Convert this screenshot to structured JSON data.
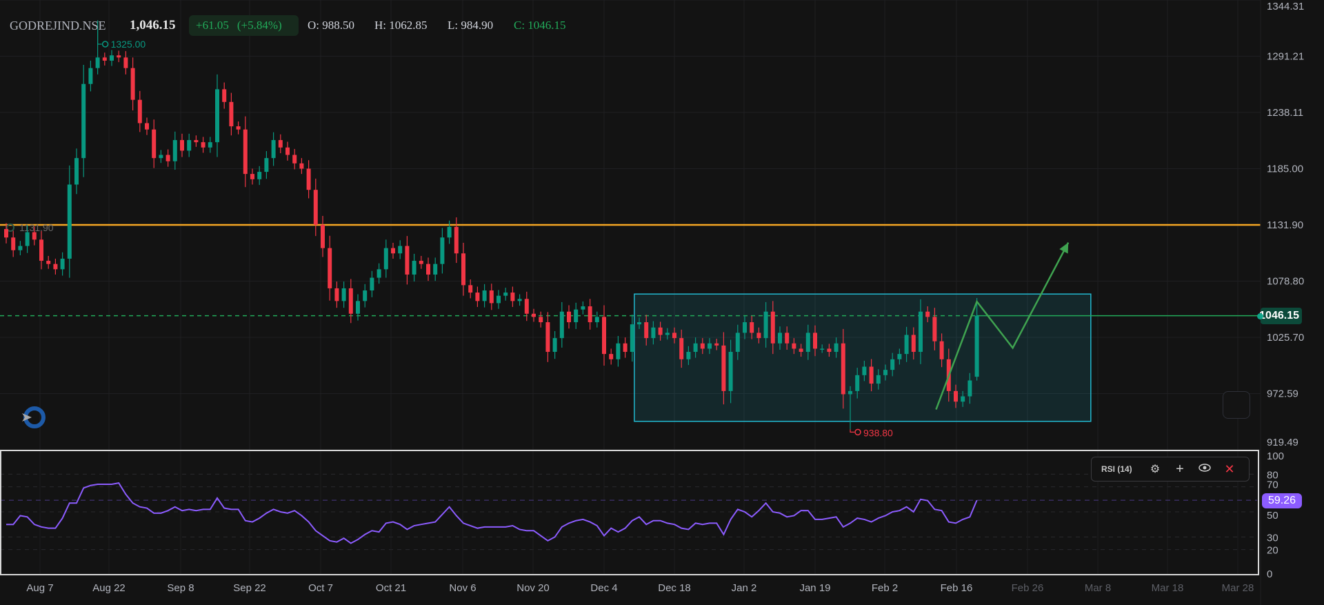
{
  "header": {
    "symbol": "GODREJIND.NSE",
    "last_price": "1,046.15",
    "change": "+61.05",
    "change_pct": "(+5.84%)",
    "open": "O: 988.50",
    "high": "H: 1062.85",
    "low": "L: 984.90",
    "close": "C: 1046.15"
  },
  "colors": {
    "background": "#131313",
    "up": "#089981",
    "down": "#f23645",
    "resistance_line": "#f5a623",
    "range_box": "#22b8cf",
    "projection": "#3fa350",
    "rsi_line": "#8c5cff",
    "last_price_tag": "#0c4a3a"
  },
  "price_axis": {
    "labels": [
      "1344.31",
      "1291.21",
      "1238.11",
      "1185.00",
      "1131.90",
      "1078.80",
      "1025.70",
      "972.59",
      "919.49"
    ],
    "last_price_label": "1046.15"
  },
  "rsi": {
    "legend": "RSI (14)",
    "icons": [
      "gear-icon",
      "plus-icon",
      "eye-icon",
      "close-icon"
    ],
    "axis_labels": [
      "100",
      "80",
      "70",
      "50",
      "30",
      "20",
      "0"
    ],
    "value_label": "59.26"
  },
  "date_axis": {
    "labels": [
      "Aug 7",
      "Aug 22",
      "Sep 8",
      "Sep 22",
      "Oct 7",
      "Oct 21",
      "Nov 6",
      "Nov 20",
      "Dec 4",
      "Dec 18",
      "Jan 2",
      "Jan 19",
      "Feb 2",
      "Feb 16",
      "Feb 26",
      "Mar 8",
      "Mar 18",
      "Mar 28"
    ],
    "future_from": 14
  },
  "chart_data": {
    "type": "candlestick",
    "ylim": [
      919.49,
      1344.31
    ],
    "closes": [
      1120,
      1108,
      1112,
      1125,
      1118,
      1098,
      1095,
      1090,
      1100,
      1170,
      1195,
      1265,
      1280,
      1290,
      1287,
      1292,
      1290,
      1280,
      1250,
      1228,
      1222,
      1195,
      1198,
      1192,
      1212,
      1202,
      1212,
      1210,
      1205,
      1210,
      1260,
      1248,
      1225,
      1222,
      1180,
      1175,
      1182,
      1195,
      1212,
      1205,
      1198,
      1190,
      1185,
      1165,
      1132,
      1110,
      1072,
      1060,
      1072,
      1048,
      1060,
      1070,
      1082,
      1090,
      1110,
      1105,
      1112,
      1085,
      1098,
      1095,
      1085,
      1095,
      1120,
      1130,
      1105,
      1075,
      1068,
      1060,
      1070,
      1058,
      1065,
      1068,
      1060,
      1062,
      1048,
      1045,
      1040,
      1012,
      1025,
      1050,
      1040,
      1052,
      1055,
      1040,
      1045,
      1010,
      1005,
      1020,
      1012,
      1038,
      1040,
      1025,
      1035,
      1028,
      1030,
      1025,
      1005,
      1012,
      1020,
      1015,
      1020,
      1018,
      975,
      1012,
      1030,
      1040,
      1030,
      1025,
      1050,
      1020,
      1030,
      1020,
      1015,
      1012,
      1030,
      1015,
      1015,
      1012,
      1020,
      972,
      975,
      990,
      998,
      982,
      990,
      995,
      1005,
      1010,
      1028,
      1012,
      1050,
      1045,
      1022,
      1005,
      975,
      965,
      970,
      985,
      1046.15
    ],
    "last_bar": {
      "open": 988.5,
      "high": 1062.85,
      "low": 984.9,
      "close": 1046.15
    },
    "marked_high": {
      "bar": 13,
      "value": 1325.0,
      "label": "1325.00"
    },
    "marked_low": {
      "bar": 120,
      "value": 938.8,
      "label": "938.80"
    },
    "horizontal_line": {
      "value": 1131.9,
      "label": "1131.90"
    },
    "last_price_line": 1046.15,
    "range_box": {
      "from_bar": 89.3,
      "to_bar": 154.2,
      "top": 1066.6,
      "bottom": 946.4
    },
    "projection_path": [
      {
        "bar": 132.2,
        "price": 957.6
      },
      {
        "bar": 138,
        "price": 1059.5
      },
      {
        "bar": 143.1,
        "price": 1015.7
      },
      {
        "bar": 151,
        "price": 1115.2
      }
    ],
    "rsi_values": [
      40,
      40,
      47,
      46,
      40,
      38,
      37,
      37,
      45,
      57,
      57,
      69,
      71,
      72,
      72,
      72,
      73,
      64,
      57,
      54,
      53,
      49,
      49,
      51,
      54,
      51,
      52,
      51,
      52,
      52,
      61,
      53,
      52,
      52,
      43,
      42,
      45,
      49,
      52,
      50,
      49,
      51,
      47,
      42,
      35,
      31,
      27,
      26,
      29,
      25,
      28,
      32,
      35,
      34,
      41,
      42,
      40,
      36,
      39,
      40,
      41,
      42,
      48,
      54,
      47,
      41,
      39,
      37,
      38,
      38,
      38,
      38,
      39,
      36,
      35,
      35,
      31,
      27,
      30,
      38,
      41,
      43,
      44,
      42,
      39,
      31,
      37,
      34,
      37,
      43,
      46,
      40,
      43,
      43,
      41,
      40,
      37,
      36,
      41,
      40,
      41,
      41,
      32,
      44,
      52,
      50,
      46,
      51,
      57,
      50,
      49,
      46,
      47,
      51,
      51,
      44,
      44,
      45,
      46,
      38,
      41,
      45,
      44,
      42,
      45,
      47,
      50,
      51,
      54,
      50,
      60,
      59,
      52,
      51,
      42,
      41,
      44,
      46,
      59.26
    ],
    "rsi_levels": [
      80,
      70,
      50,
      30,
      20
    ]
  }
}
